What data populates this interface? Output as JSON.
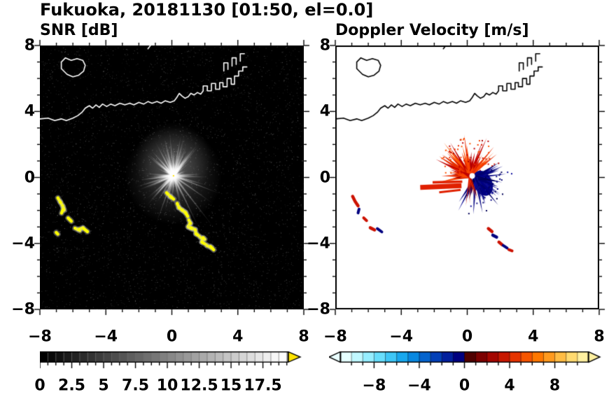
{
  "title": "Fukuoka, 20181130 [01:50, el=0.0]",
  "panels": {
    "snr": {
      "title": "SNR [dB]"
    },
    "velocity": {
      "title": "Doppler Velocity [m/s]"
    }
  },
  "axes": {
    "tick_values": [
      -8,
      -4,
      0,
      4,
      8
    ],
    "x_tick_labels": [
      "−8",
      "−4",
      "0",
      "4",
      "8"
    ],
    "y_tick_labels": [
      "−8",
      "−4",
      "0",
      "4",
      "8"
    ],
    "range": [
      -8,
      8
    ],
    "major_tick_step": 4,
    "minor_tick_step": 1
  },
  "colorbars": {
    "snr": {
      "tick_values": [
        0,
        2.5,
        5,
        7.5,
        10,
        12.5,
        15,
        17.5
      ],
      "tick_labels": [
        "0",
        "2.5",
        "5",
        "7.5",
        "10",
        "12.5",
        "15",
        "17.5"
      ],
      "range": [
        0,
        19.5
      ],
      "minor_tick_step": 0.625,
      "colormap": "grayscale-black-to-white",
      "over_arrow_color": "#ffe400"
    },
    "velocity": {
      "tick_values": [
        -8,
        -4,
        0,
        4,
        8
      ],
      "tick_labels": [
        "−8",
        "−4",
        "0",
        "4",
        "8"
      ],
      "range": [
        -11,
        11
      ],
      "minor_tick_step": 1,
      "colors_negative": [
        "#e6ffff",
        "#c0f8ff",
        "#96eeff",
        "#68defc",
        "#3ec6f6",
        "#18a8ee",
        "#0888e0",
        "#0564ce",
        "#0340b8",
        "#02209e",
        "#000080"
      ],
      "colors_positive": [
        "#500000",
        "#7c0000",
        "#a40600",
        "#c81800",
        "#e63400",
        "#f65600",
        "#ff7800",
        "#ff9a1e",
        "#ffbc44",
        "#ffda70",
        "#fff0a0"
      ],
      "under_arrow_color": "#eaffff",
      "over_arrow_color": "#fff0a0"
    }
  },
  "chart_data": {
    "type": "heatmap",
    "description": "Dual-panel weather radar PPI display over Fukuoka, 2018-11-30 01:50, elevation 0.0 deg. Left: SNR in dB (grayscale, yellow = over-range clutter along coast). Right: Doppler velocity in m/s (blues negative, reds positive) around radar at origin.",
    "titles": [
      "SNR [dB]",
      "Doppler Velocity [m/s]"
    ],
    "x_ticks": [
      -8,
      -4,
      0,
      4,
      8
    ],
    "y_ticks": [
      -8,
      -4,
      0,
      4,
      8
    ],
    "xlim": [
      -8,
      8
    ],
    "ylim": [
      -8,
      8
    ],
    "snr_colorbar_ticks": [
      0,
      2.5,
      5,
      7.5,
      10,
      12.5,
      15,
      17.5
    ],
    "velocity_colorbar_ticks": [
      -8,
      -4,
      0,
      4,
      8
    ],
    "coastline": {
      "paths": [
        [
          [
            -8,
            3.55
          ],
          [
            -7.5,
            3.6
          ],
          [
            -7.1,
            3.45
          ],
          [
            -6.7,
            3.55
          ],
          [
            -6.4,
            3.45
          ],
          [
            -6.0,
            3.6
          ],
          [
            -5.7,
            3.75
          ],
          [
            -5.45,
            3.95
          ],
          [
            -5.25,
            4.2
          ],
          [
            -5.0,
            4.35
          ],
          [
            -4.8,
            4.2
          ],
          [
            -4.6,
            4.4
          ],
          [
            -4.4,
            4.25
          ],
          [
            -4.2,
            4.45
          ],
          [
            -3.95,
            4.3
          ],
          [
            -3.7,
            4.45
          ],
          [
            -3.45,
            4.35
          ],
          [
            -3.15,
            4.5
          ],
          [
            -2.85,
            4.4
          ],
          [
            -2.55,
            4.5
          ],
          [
            -2.3,
            4.4
          ],
          [
            -2.0,
            4.55
          ],
          [
            -1.7,
            4.45
          ],
          [
            -1.45,
            4.6
          ],
          [
            -1.2,
            4.5
          ],
          [
            -0.9,
            4.6
          ],
          [
            -0.65,
            4.5
          ],
          [
            -0.4,
            4.65
          ],
          [
            -0.1,
            4.55
          ],
          [
            0.15,
            4.65
          ],
          [
            0.3,
            4.85
          ],
          [
            0.45,
            5.1
          ],
          [
            0.6,
            4.95
          ],
          [
            0.8,
            4.8
          ],
          [
            1.0,
            4.9
          ],
          [
            1.15,
            5.1
          ],
          [
            1.35,
            5.0
          ],
          [
            1.55,
            5.15
          ],
          [
            1.75,
            5.05
          ],
          [
            1.9,
            5.25
          ],
          [
            1.9,
            5.55
          ],
          [
            2.15,
            5.55
          ],
          [
            2.15,
            5.25
          ],
          [
            2.4,
            5.25
          ],
          [
            2.4,
            5.7
          ],
          [
            2.65,
            5.7
          ],
          [
            2.65,
            5.35
          ],
          [
            2.9,
            5.35
          ],
          [
            2.9,
            5.75
          ],
          [
            3.1,
            5.75
          ],
          [
            3.1,
            5.5
          ],
          [
            3.35,
            5.5
          ],
          [
            3.35,
            6.0
          ],
          [
            3.6,
            6.0
          ],
          [
            3.6,
            5.65
          ],
          [
            3.8,
            5.65
          ],
          [
            3.8,
            6.15
          ],
          [
            4.05,
            6.15
          ],
          [
            4.05,
            6.45
          ],
          [
            4.3,
            6.45
          ],
          [
            4.3,
            6.7
          ],
          [
            4.55,
            6.7
          ]
        ],
        [
          [
            3.15,
            6.45
          ],
          [
            3.15,
            6.95
          ],
          [
            3.4,
            6.95
          ],
          [
            3.4,
            6.55
          ]
        ],
        [
          [
            3.65,
            6.75
          ],
          [
            3.65,
            7.25
          ],
          [
            3.9,
            7.25
          ],
          [
            3.9,
            6.85
          ]
        ],
        [
          [
            4.15,
            7.05
          ],
          [
            4.15,
            7.5
          ],
          [
            4.4,
            7.5
          ]
        ],
        [
          [
            -1.45,
            7.8
          ],
          [
            -1.3,
            8.0
          ]
        ]
      ],
      "island": [
        [
          -6.35,
          6.25
        ],
        [
          -6.0,
          6.1
        ],
        [
          -5.65,
          6.2
        ],
        [
          -5.35,
          6.45
        ],
        [
          -5.25,
          6.8
        ],
        [
          -5.4,
          7.1
        ],
        [
          -5.75,
          7.2
        ],
        [
          -6.1,
          7.1
        ],
        [
          -6.45,
          7.25
        ],
        [
          -6.7,
          7.0
        ],
        [
          -6.7,
          6.6
        ],
        [
          -6.5,
          6.4
        ]
      ]
    },
    "snr_panel": {
      "background": "#000000",
      "noise_seed": 1234,
      "radar_center": [
        0.1,
        0.1
      ],
      "spokes": {
        "seed": 42,
        "count": 85,
        "len_min": 0.5,
        "len_max": 2.6,
        "extra_up": 30
      },
      "long_spokes": [
        {
          "angle_deg": -52,
          "len": 4.2
        },
        {
          "angle_deg": -64,
          "len": 3.9
        },
        {
          "angle_deg": -35,
          "len": 3.1
        },
        {
          "angle_deg": -21,
          "len": 3.4
        },
        {
          "angle_deg": 250,
          "len": 3.3
        },
        {
          "angle_deg": 228,
          "len": 2.6
        },
        {
          "angle_deg": 95,
          "len": 2.9
        },
        {
          "angle_deg": 75,
          "len": 2.7
        },
        {
          "angle_deg": 118,
          "len": 2.5
        },
        {
          "angle_deg": 142,
          "len": 2.3
        }
      ],
      "clutter_color": "#ffff00",
      "clutter_chains": [
        [
          [
            -0.35,
            -0.9
          ],
          [
            -0.1,
            -1.15
          ],
          [
            0.1,
            -1.3
          ],
          [
            0.3,
            -1.55
          ],
          [
            0.4,
            -1.8
          ],
          [
            0.6,
            -1.95
          ],
          [
            0.8,
            -2.1
          ],
          [
            0.95,
            -2.35
          ],
          [
            1.05,
            -2.6
          ],
          [
            1.15,
            -2.8
          ],
          [
            1.0,
            -3.0
          ],
          [
            1.2,
            -3.1
          ],
          [
            1.45,
            -3.2
          ],
          [
            1.5,
            -3.45
          ],
          [
            1.7,
            -3.6
          ],
          [
            1.95,
            -3.7
          ],
          [
            1.85,
            -3.95
          ],
          [
            2.1,
            -4.1
          ],
          [
            2.35,
            -4.2
          ],
          [
            2.55,
            -4.4
          ]
        ],
        [
          [
            -6.95,
            -1.2
          ],
          [
            -6.8,
            -1.45
          ],
          [
            -6.65,
            -1.7
          ],
          [
            -6.55,
            -1.95
          ],
          [
            -6.65,
            -2.2
          ]
        ],
        [
          [
            -6.3,
            -2.45
          ],
          [
            -6.1,
            -2.65
          ]
        ],
        [
          [
            -5.9,
            -3.05
          ],
          [
            -5.6,
            -3.2
          ],
          [
            -5.35,
            -3.1
          ],
          [
            -5.1,
            -3.3
          ]
        ],
        [
          [
            -7.05,
            -3.3
          ],
          [
            -6.95,
            -3.4
          ]
        ]
      ]
    },
    "vel_panel": {
      "background": "#ffffff",
      "radar_center": [
        0.15,
        0.1
      ],
      "red_colors": [
        "#a80000",
        "#c00000",
        "#d81800",
        "#ea2e00",
        "#f94400",
        "#ff5500"
      ],
      "blue_colors": [
        "#000082",
        "#00006e",
        "#0b0b9c",
        "#000057",
        "#101086"
      ],
      "red_fan": {
        "seed": 7,
        "count": 60,
        "angle_from": 25,
        "angle_to": 205,
        "len_min": 0.4,
        "len_max": 2.3
      },
      "blue_fan": {
        "seed": 9,
        "count": 60,
        "center": [
          0.5,
          0.0
        ],
        "angle_from": -125,
        "angle_to": 35,
        "len_min": 0.35,
        "len_max": 1.9
      },
      "blue_core": {
        "center": [
          0.95,
          -0.35
        ],
        "rx": 0.55,
        "ry": 0.8,
        "rot_deg": -25
      },
      "left_streaks": [
        {
          "from": [
            -0.35,
            -0.5
          ],
          "to": [
            -2.85,
            -0.6
          ],
          "w": 7
        },
        {
          "from": [
            -0.3,
            -0.25
          ],
          "to": [
            -2.1,
            -0.3
          ],
          "w": 3.5
        },
        {
          "from": [
            -0.4,
            -0.75
          ],
          "to": [
            -1.7,
            -0.9
          ],
          "w": 3
        }
      ],
      "clutter": [
        {
          "pts": [
            [
              -6.95,
              -1.15
            ],
            [
              -6.8,
              -1.45
            ],
            [
              -6.62,
              -1.72
            ]
          ],
          "color": "#cc1100",
          "w": 4.5
        },
        {
          "pts": [
            [
              -6.56,
              -1.92
            ],
            [
              -6.62,
              -2.15
            ]
          ],
          "color": "#000080",
          "w": 4
        },
        {
          "pts": [
            [
              -6.28,
              -2.45
            ],
            [
              -6.1,
              -2.62
            ]
          ],
          "color": "#cc1100",
          "w": 4
        },
        {
          "pts": [
            [
              -5.88,
              -3.05
            ],
            [
              -5.62,
              -3.18
            ]
          ],
          "color": "#cc1100",
          "w": 4.5
        },
        {
          "pts": [
            [
              -5.45,
              -3.1
            ],
            [
              -5.18,
              -3.3
            ]
          ],
          "color": "#000080",
          "w": 4
        },
        {
          "pts": [
            [
              1.28,
              -3.1
            ],
            [
              1.5,
              -3.28
            ]
          ],
          "color": "#cc1100",
          "w": 4.5
        },
        {
          "pts": [
            [
              1.55,
              -3.5
            ],
            [
              1.78,
              -3.62
            ]
          ],
          "color": "#000080",
          "w": 4.5
        },
        {
          "pts": [
            [
              1.92,
              -3.92
            ],
            [
              2.12,
              -4.08
            ]
          ],
          "color": "#cc1100",
          "w": 4.5
        },
        {
          "pts": [
            [
              2.18,
              -4.12
            ],
            [
              2.42,
              -4.28
            ]
          ],
          "color": "#000080",
          "w": 4
        },
        {
          "pts": [
            [
              2.52,
              -4.38
            ],
            [
              2.72,
              -4.45
            ]
          ],
          "color": "#cc1100",
          "w": 4
        }
      ]
    }
  }
}
